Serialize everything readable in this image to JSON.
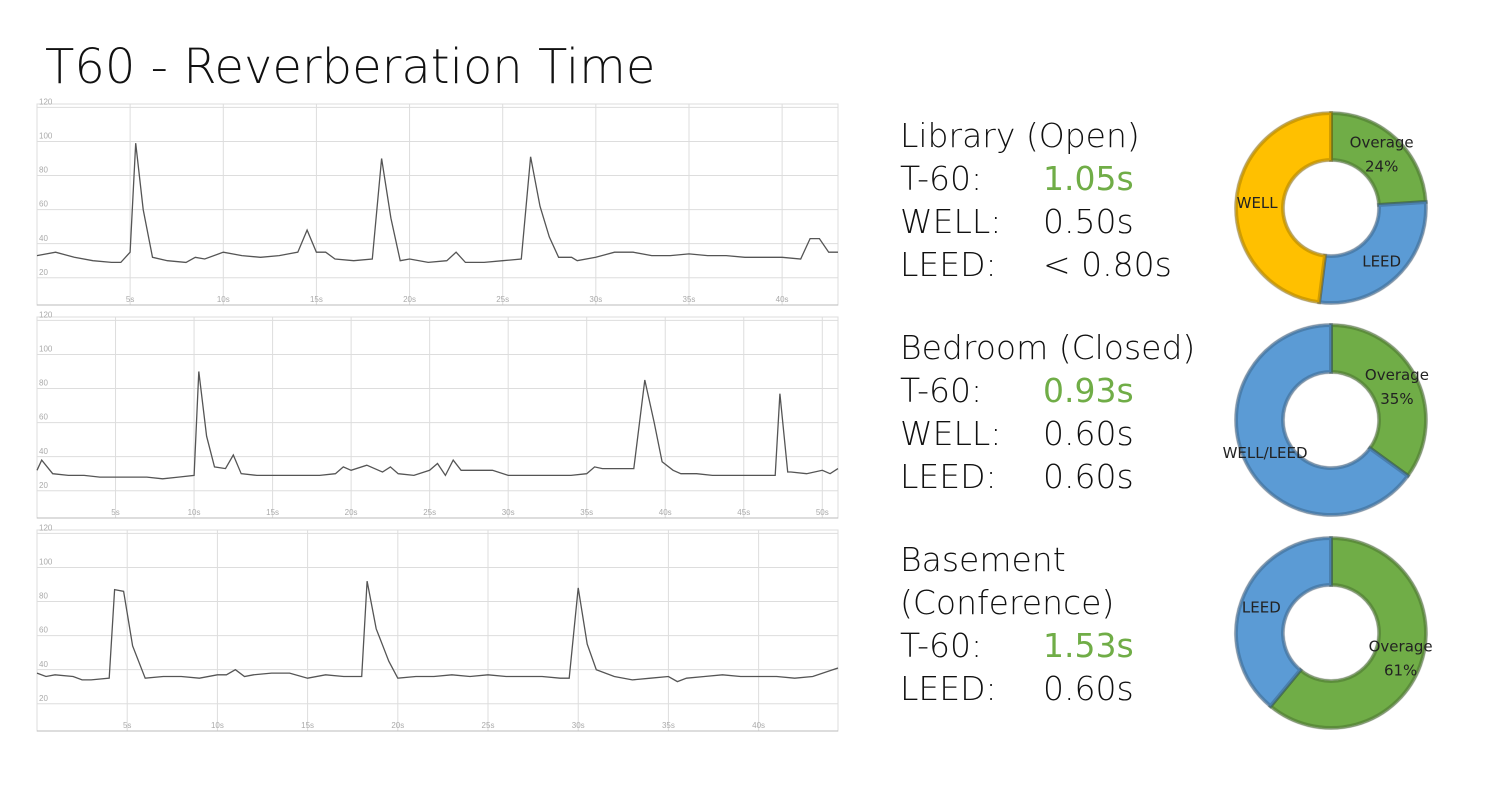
{
  "title": "T60 - Reverberation Time",
  "chart_data": [
    {
      "type": "line",
      "color": "#555555",
      "grid": true,
      "x": [
        0,
        1,
        2,
        3,
        4,
        4.5,
        5,
        5.3,
        5.7,
        6.2,
        7,
        8,
        8.5,
        9,
        10,
        11,
        12,
        13,
        13.5,
        14,
        14.5,
        15,
        15.5,
        16,
        17,
        18,
        18.5,
        19,
        19.5,
        20,
        21,
        22,
        22.5,
        23,
        24,
        25,
        26,
        26.5,
        27,
        27.5,
        28,
        28.7,
        29,
        30,
        31,
        32,
        33,
        34,
        35,
        36,
        37,
        38,
        39,
        40,
        41,
        41.5,
        42,
        42.5,
        43
      ],
      "values": [
        33,
        35,
        32,
        30,
        29,
        29,
        35,
        99,
        60,
        32,
        30,
        29,
        32,
        31,
        35,
        33,
        32,
        33,
        34,
        35,
        48,
        35,
        35,
        31,
        30,
        31,
        90,
        55,
        30,
        31,
        29,
        30,
        35,
        29,
        29,
        30,
        31,
        91,
        62,
        44,
        32,
        32,
        30,
        32,
        35,
        35,
        33,
        33,
        34,
        33,
        33,
        32,
        32,
        32,
        31,
        43,
        43,
        35,
        35
      ],
      "xlim": [
        0,
        43
      ],
      "ylim": [
        4,
        122
      ],
      "xticks": [
        {
          "value": 5,
          "label": "5s"
        },
        {
          "value": 10,
          "label": "10s"
        },
        {
          "value": 15,
          "label": "15s"
        },
        {
          "value": 20,
          "label": "20s"
        },
        {
          "value": 25,
          "label": "25s"
        },
        {
          "value": 30,
          "label": "30s"
        },
        {
          "value": 35,
          "label": "35s"
        },
        {
          "value": 40,
          "label": "40s"
        }
      ],
      "yticks": [
        20,
        40,
        60,
        80,
        100,
        120
      ]
    },
    {
      "type": "line",
      "color": "#555555",
      "grid": true,
      "x": [
        0,
        0.3,
        1,
        2,
        3,
        4,
        5,
        6,
        7,
        8,
        9,
        10,
        10.3,
        10.8,
        11.3,
        12,
        12.5,
        13,
        14,
        15,
        16,
        17,
        18,
        19,
        19.5,
        20,
        21,
        22,
        22.5,
        23,
        24,
        25,
        25.5,
        26,
        26.5,
        27,
        28,
        29,
        30,
        31,
        32,
        33,
        34,
        35,
        35.5,
        36,
        36.5,
        37,
        38,
        38.7,
        39.3,
        39.8,
        40.5,
        41,
        42,
        43,
        44,
        45,
        46,
        47,
        47.3,
        47.8,
        48,
        49,
        50,
        50.5,
        51
      ],
      "values": [
        32,
        38,
        30,
        29,
        29,
        28,
        28,
        28,
        28,
        27,
        28,
        29,
        90,
        52,
        34,
        33,
        41,
        30,
        29,
        29,
        29,
        29,
        29,
        30,
        34,
        32,
        35,
        31,
        34,
        30,
        29,
        32,
        36,
        29,
        38,
        32,
        32,
        32,
        29,
        29,
        29,
        29,
        29,
        30,
        34,
        33,
        33,
        33,
        33,
        85,
        60,
        37,
        32,
        30,
        30,
        29,
        29,
        29,
        29,
        29,
        77,
        31,
        31,
        30,
        32,
        30,
        33
      ],
      "xlim": [
        0,
        51
      ],
      "ylim": [
        4,
        122
      ],
      "xticks": [
        {
          "value": 5,
          "label": "5s"
        },
        {
          "value": 10,
          "label": "10s"
        },
        {
          "value": 15,
          "label": "15s"
        },
        {
          "value": 20,
          "label": "20s"
        },
        {
          "value": 25,
          "label": "25s"
        },
        {
          "value": 30,
          "label": "30s"
        },
        {
          "value": 35,
          "label": "35s"
        },
        {
          "value": 40,
          "label": "40s"
        },
        {
          "value": 45,
          "label": "45s"
        },
        {
          "value": 50,
          "label": "50s"
        }
      ],
      "yticks": [
        20,
        40,
        60,
        80,
        100,
        120
      ]
    },
    {
      "type": "line",
      "color": "#555555",
      "grid": true,
      "x": [
        0,
        0.5,
        1,
        2,
        2.5,
        3,
        4,
        4.3,
        4.8,
        5.3,
        6,
        7,
        8,
        9,
        10,
        10.5,
        11,
        11.5,
        12,
        13,
        14,
        15,
        16,
        17,
        18,
        18.3,
        18.8,
        19.5,
        20,
        21,
        22,
        23,
        24,
        25,
        26,
        27,
        28,
        29,
        29.5,
        30,
        30.5,
        31,
        32,
        33,
        34,
        35,
        35.5,
        36,
        37,
        38,
        39,
        40,
        41,
        42,
        43,
        44.4
      ],
      "values": [
        38,
        36,
        37,
        36,
        34,
        34,
        35,
        87,
        86,
        54,
        35,
        36,
        36,
        35,
        37,
        37,
        40,
        36,
        37,
        38,
        38,
        35,
        37,
        36,
        36,
        92,
        64,
        45,
        35,
        36,
        36,
        37,
        36,
        37,
        36,
        36,
        36,
        35,
        35,
        88,
        55,
        40,
        36,
        34,
        35,
        36,
        33,
        35,
        36,
        37,
        36,
        36,
        36,
        35,
        36,
        41
      ],
      "xlim": [
        0,
        44.4
      ],
      "ylim": [
        4,
        122
      ],
      "xticks": [
        {
          "value": 5,
          "label": "5s"
        },
        {
          "value": 10,
          "label": "10s"
        },
        {
          "value": 15,
          "label": "15s"
        },
        {
          "value": 20,
          "label": "20s"
        },
        {
          "value": 25,
          "label": "25s"
        },
        {
          "value": 30,
          "label": "30s"
        },
        {
          "value": 35,
          "label": "35s"
        },
        {
          "value": 40,
          "label": "40s"
        }
      ],
      "yticks": [
        20,
        40,
        60,
        80,
        100,
        120
      ]
    },
    {
      "type": "donut",
      "categories": [
        "Overage",
        "LEED",
        "WELL"
      ],
      "values": [
        24,
        28,
        48
      ],
      "value_labels": [
        "24%",
        null,
        null
      ],
      "colors": [
        "#70ad47",
        "#5b9bd5",
        "#ffc000"
      ]
    },
    {
      "type": "donut",
      "categories": [
        "Overage",
        "WELL/LEED"
      ],
      "values": [
        35,
        65
      ],
      "value_labels": [
        "35%",
        null
      ],
      "colors": [
        "#70ad47",
        "#5b9bd5"
      ]
    },
    {
      "type": "donut",
      "categories": [
        "Overage",
        "LEED"
      ],
      "values": [
        61,
        39
      ],
      "value_labels": [
        "61%",
        null
      ],
      "colors": [
        "#70ad47",
        "#5b9bd5"
      ]
    }
  ],
  "rooms": [
    {
      "name": "Library (Open)",
      "rows": [
        [
          "T-60:",
          "1.05s"
        ],
        [
          "WELL:",
          "0.50s"
        ],
        [
          "LEED:",
          "< 0.80s"
        ]
      ]
    },
    {
      "name": "Bedroom (Closed)",
      "rows": [
        [
          "T-60:",
          "0.93s"
        ],
        [
          "WELL:",
          "0.60s"
        ],
        [
          "LEED:",
          "0.60s"
        ]
      ]
    },
    {
      "name": "Basement (Conference)",
      "rows": [
        [
          "T-60:",
          "1.53s"
        ],
        [
          "LEED:",
          "0.60s"
        ]
      ]
    }
  ]
}
